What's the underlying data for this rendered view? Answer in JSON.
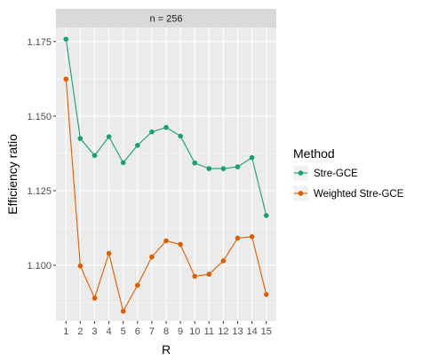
{
  "chart_data": {
    "type": "line",
    "facet_label": "n = 256",
    "xlabel": "R",
    "ylabel": "Efficiency ratio",
    "x": [
      1,
      2,
      3,
      4,
      5,
      6,
      7,
      8,
      9,
      10,
      11,
      12,
      13,
      14,
      15
    ],
    "x_ticks": [
      "1",
      "2",
      "3",
      "4",
      "5",
      "6",
      "7",
      "8",
      "9",
      "10",
      "11",
      "12",
      "13",
      "14",
      "15"
    ],
    "y_ticks": [
      1.1,
      1.125,
      1.15,
      1.175
    ],
    "y_tick_labels": [
      "1.100",
      "1.125",
      "1.150",
      "1.175"
    ],
    "ylim": [
      1.0813,
      1.1797
    ],
    "xlim": [
      0.3,
      15.7
    ],
    "grid": true,
    "legend": {
      "title": "Method",
      "position": "right"
    },
    "series": [
      {
        "name": "Stre-GCE",
        "color": "#1b9e77",
        "values": [
          1.1758,
          1.1425,
          1.1368,
          1.1431,
          1.1344,
          1.1402,
          1.1447,
          1.1462,
          1.1433,
          1.1343,
          1.1324,
          1.1324,
          1.133,
          1.1361,
          1.1167
        ]
      },
      {
        "name": "Weighted Stre-GCE",
        "color": "#d95f02",
        "values": [
          1.1624,
          1.0998,
          1.089,
          1.104,
          1.0846,
          1.0933,
          1.1028,
          1.1082,
          1.107,
          1.0963,
          1.097,
          1.1015,
          1.1091,
          1.1096,
          1.0902
        ]
      }
    ]
  },
  "colors": {
    "panel_background": "#ebebeb",
    "strip_background": "#d9d9d9",
    "grid_major": "#ffffff"
  }
}
